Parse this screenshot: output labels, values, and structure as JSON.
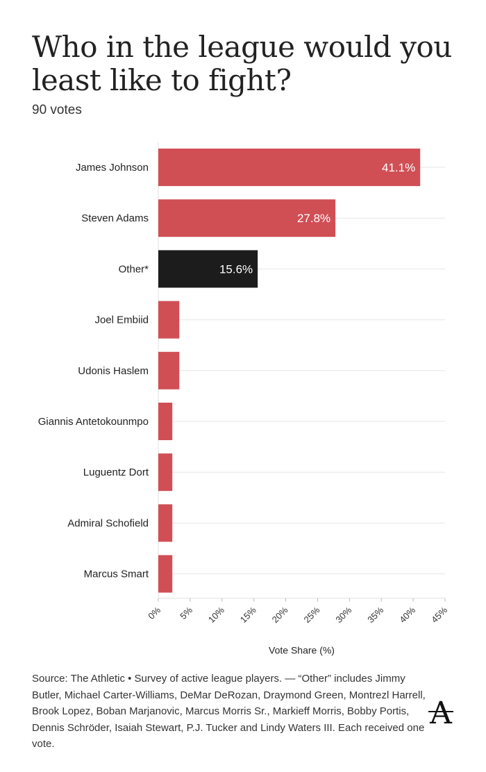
{
  "title": "Who in the league would you least like to fight?",
  "subtitle": "90 votes",
  "source_note": "Source: The Athletic • Survey of active league players. — “Other” includes Jimmy Butler, Michael Carter-Williams, DeMar DeRozan, Draymond Green, Montrezl Harrell, Brook Lopez, Boban Marjanovic, Marcus Morris Sr., Markieff Morris, Bobby Portis, Dennis Schröder, Isaiah Stewart, P.J. Tucker and Lindy Waters III. Each received one vote.",
  "logo_text": "A",
  "colors": {
    "red": "#d04f55",
    "black": "#1c1c1c"
  },
  "chart_data": {
    "type": "bar",
    "orientation": "horizontal",
    "categories": [
      "James Johnson",
      "Steven Adams",
      "Other*",
      "Joel Embiid",
      "Udonis Haslem",
      "Giannis Antetokounmpo",
      "Luguentz Dort",
      "Admiral Schofield",
      "Marcus Smart"
    ],
    "values": [
      41.1,
      27.8,
      15.6,
      3.3,
      3.3,
      2.2,
      2.2,
      2.2,
      2.2
    ],
    "data_labels": [
      "41.1%",
      "27.8%",
      "15.6%",
      "",
      "",
      "",
      "",
      "",
      ""
    ],
    "bar_colors": [
      "red",
      "red",
      "black",
      "red",
      "red",
      "red",
      "red",
      "red",
      "red"
    ],
    "xlabel": "Vote Share (%)",
    "xlim": [
      0,
      45
    ],
    "x_ticks": [
      0,
      5,
      10,
      15,
      20,
      25,
      30,
      35,
      40,
      45
    ],
    "x_tick_labels": [
      "0%",
      "5%",
      "10%",
      "15%",
      "20%",
      "25%",
      "30%",
      "35%",
      "40%",
      "45%"
    ],
    "grid": true
  }
}
